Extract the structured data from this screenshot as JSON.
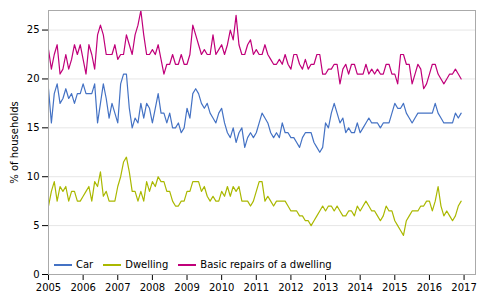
{
  "chart_data": {
    "type": "line",
    "ylabel": "% of households",
    "xlim": [
      2005.0,
      2017.33
    ],
    "xticks": [
      2005,
      2006,
      2007,
      2008,
      2009,
      2010,
      2011,
      2012,
      2013,
      2014,
      2015,
      2016,
      2017
    ],
    "ylim": [
      0,
      27
    ],
    "yticks": [
      0,
      5,
      10,
      15,
      20,
      25
    ],
    "grid": true,
    "legend": "lower left",
    "x": [
      2005,
      2005.0833333333,
      2005.1666666667,
      2005.25,
      2005.3333333333,
      2005.4166666667,
      2005.5,
      2005.5833333333,
      2005.6666666667,
      2005.75,
      2005.8333333333,
      2005.9166666667,
      2006,
      2006.0833333333,
      2006.1666666667,
      2006.25,
      2006.3333333333,
      2006.4166666667,
      2006.5,
      2006.5833333333,
      2006.6666666667,
      2006.75,
      2006.8333333333,
      2006.9166666667,
      2007,
      2007.0833333333,
      2007.1666666667,
      2007.25,
      2007.3333333333,
      2007.4166666667,
      2007.5,
      2007.5833333333,
      2007.6666666667,
      2007.75,
      2007.8333333333,
      2007.9166666667,
      2008,
      2008.0833333333,
      2008.1666666667,
      2008.25,
      2008.3333333333,
      2008.4166666667,
      2008.5,
      2008.5833333333,
      2008.6666666667,
      2008.75,
      2008.8333333333,
      2008.9166666667,
      2009,
      2009.0833333333,
      2009.1666666667,
      2009.25,
      2009.3333333333,
      2009.4166666667,
      2009.5,
      2009.5833333333,
      2009.6666666667,
      2009.75,
      2009.8333333333,
      2009.9166666667,
      2010,
      2010.0833333333,
      2010.1666666667,
      2010.25,
      2010.3333333333,
      2010.4166666667,
      2010.5,
      2010.5833333333,
      2010.6666666667,
      2010.75,
      2010.8333333333,
      2010.9166666667,
      2011,
      2011.0833333333,
      2011.1666666667,
      2011.25,
      2011.3333333333,
      2011.4166666667,
      2011.5,
      2011.5833333333,
      2011.6666666667,
      2011.75,
      2011.8333333333,
      2011.9166666667,
      2012,
      2012.0833333333,
      2012.1666666667,
      2012.25,
      2012.3333333333,
      2012.4166666667,
      2012.5,
      2012.5833333333,
      2012.6666666667,
      2012.75,
      2012.8333333333,
      2012.9166666667,
      2013,
      2013.0833333333,
      2013.1666666667,
      2013.25,
      2013.3333333333,
      2013.4166666667,
      2013.5,
      2013.5833333333,
      2013.6666666667,
      2013.75,
      2013.8333333333,
      2013.9166666667,
      2014,
      2014.0833333333,
      2014.1666666667,
      2014.25,
      2014.3333333333,
      2014.4166666667,
      2014.5,
      2014.5833333333,
      2014.6666666667,
      2014.75,
      2014.8333333333,
      2014.9166666667,
      2015,
      2015.0833333333,
      2015.1666666667,
      2015.25,
      2015.3333333333,
      2015.4166666667,
      2015.5,
      2015.5833333333,
      2015.6666666667,
      2015.75,
      2015.8333333333,
      2015.9166666667,
      2016,
      2016.0833333333,
      2016.1666666667,
      2016.25,
      2016.3333333333,
      2016.4166666667,
      2016.5,
      2016.5833333333,
      2016.6666666667,
      2016.75,
      2016.8333333333,
      2016.9166666667
    ],
    "series": [
      {
        "name": "Car",
        "color": "#4472c4",
        "values": [
          19.0,
          15.5,
          18.5,
          19.5,
          17.5,
          18.0,
          19.0,
          18.0,
          18.5,
          17.5,
          18.5,
          18.5,
          19.5,
          18.5,
          18.5,
          18.5,
          19.5,
          15.5,
          17.5,
          19.5,
          18.0,
          16.0,
          17.5,
          16.5,
          15.5,
          19.5,
          20.5,
          20.5,
          17.0,
          15.0,
          16.0,
          15.5,
          17.5,
          16.0,
          17.5,
          17.0,
          15.5,
          17.0,
          18.5,
          16.5,
          16.5,
          15.5,
          16.5,
          15.0,
          15.0,
          15.5,
          14.5,
          15.0,
          17.0,
          16.0,
          18.5,
          19.0,
          18.5,
          17.5,
          17.0,
          17.5,
          16.5,
          16.0,
          15.5,
          16.5,
          17.0,
          15.5,
          14.5,
          14.0,
          15.0,
          13.5,
          14.5,
          15.0,
          13.0,
          14.0,
          14.5,
          14.0,
          14.5,
          15.5,
          16.5,
          16.0,
          15.5,
          14.5,
          14.0,
          14.5,
          14.0,
          15.5,
          14.5,
          14.5,
          14.0,
          14.0,
          13.5,
          13.0,
          14.0,
          14.5,
          14.5,
          14.5,
          13.5,
          13.0,
          12.5,
          13.0,
          15.5,
          15.0,
          16.5,
          17.5,
          16.5,
          15.5,
          16.0,
          14.5,
          15.0,
          14.5,
          14.5,
          15.5,
          14.5,
          15.0,
          15.5,
          16.0,
          15.5,
          15.5,
          15.5,
          15.0,
          15.5,
          15.5,
          15.5,
          16.5,
          17.5,
          17.0,
          17.0,
          17.5,
          16.5,
          16.0,
          15.5,
          16.0,
          16.5,
          16.5,
          16.5,
          16.5,
          16.5,
          16.5,
          17.5,
          16.5,
          16.0,
          15.5,
          15.5,
          15.5,
          15.5,
          16.5,
          16.0,
          16.5
        ]
      },
      {
        "name": "Dwelling",
        "color": "#aab800",
        "values": [
          7.0,
          8.5,
          9.5,
          7.5,
          9.0,
          8.5,
          9.0,
          7.5,
          8.5,
          8.5,
          7.5,
          7.5,
          8.0,
          8.5,
          9.0,
          7.5,
          9.5,
          9.0,
          10.5,
          8.0,
          8.5,
          7.5,
          7.5,
          7.5,
          9.0,
          10.0,
          11.5,
          12.0,
          10.5,
          8.5,
          8.5,
          7.5,
          8.5,
          7.5,
          9.5,
          8.5,
          9.5,
          9.0,
          10.0,
          9.5,
          9.5,
          8.5,
          8.5,
          7.5,
          7.0,
          7.0,
          7.5,
          7.5,
          8.5,
          8.5,
          9.5,
          9.5,
          9.5,
          8.5,
          9.0,
          8.0,
          7.5,
          8.0,
          7.5,
          7.5,
          8.5,
          8.0,
          9.0,
          8.0,
          9.0,
          8.5,
          9.0,
          7.5,
          7.5,
          7.5,
          7.0,
          7.5,
          8.5,
          9.5,
          9.5,
          7.5,
          8.0,
          7.5,
          7.0,
          7.5,
          7.5,
          7.5,
          7.5,
          7.0,
          6.5,
          6.5,
          6.5,
          6.0,
          6.0,
          5.5,
          5.5,
          5.0,
          5.5,
          6.0,
          6.5,
          7.0,
          6.5,
          7.0,
          7.0,
          6.5,
          7.0,
          6.5,
          6.0,
          6.0,
          6.5,
          6.5,
          6.0,
          7.0,
          6.5,
          7.0,
          7.5,
          7.0,
          6.5,
          6.5,
          6.0,
          5.5,
          6.0,
          7.0,
          6.5,
          6.5,
          5.5,
          5.0,
          4.5,
          4.0,
          5.5,
          6.0,
          6.5,
          6.5,
          6.5,
          7.0,
          7.0,
          7.5,
          7.5,
          6.5,
          7.5,
          9.0,
          7.0,
          6.0,
          6.5,
          6.0,
          5.5,
          6.0,
          7.0,
          7.5
        ]
      },
      {
        "name": "Basic repairs of a dwelling",
        "color": "#c0007a",
        "values": [
          23.0,
          21.0,
          22.5,
          23.5,
          20.5,
          21.0,
          22.5,
          21.0,
          22.0,
          23.5,
          22.5,
          23.5,
          22.0,
          20.5,
          23.5,
          22.5,
          21.0,
          24.5,
          25.5,
          24.5,
          22.5,
          22.5,
          22.5,
          23.5,
          22.0,
          22.5,
          22.5,
          24.5,
          23.5,
          22.5,
          24.5,
          25.5,
          27.0,
          24.5,
          22.5,
          22.5,
          23.0,
          22.5,
          23.5,
          22.0,
          20.5,
          21.5,
          21.5,
          22.5,
          21.5,
          21.5,
          22.5,
          21.5,
          21.5,
          22.5,
          25.5,
          24.5,
          23.5,
          22.5,
          23.0,
          22.5,
          22.5,
          24.5,
          22.5,
          23.0,
          23.5,
          22.5,
          23.5,
          25.0,
          24.0,
          26.5,
          23.5,
          22.5,
          22.5,
          23.5,
          24.0,
          22.5,
          23.0,
          22.5,
          22.5,
          23.5,
          22.5,
          22.0,
          21.5,
          21.5,
          22.0,
          21.5,
          22.5,
          21.5,
          21.0,
          22.5,
          22.5,
          21.5,
          21.0,
          22.0,
          21.0,
          21.5,
          21.5,
          22.5,
          22.5,
          20.5,
          20.5,
          21.0,
          21.0,
          21.5,
          21.5,
          19.5,
          21.0,
          21.5,
          20.5,
          21.5,
          21.5,
          20.5,
          20.5,
          20.5,
          21.5,
          20.5,
          21.0,
          20.5,
          21.0,
          20.5,
          20.5,
          21.5,
          21.5,
          20.5,
          20.5,
          19.5,
          22.5,
          22.5,
          21.5,
          21.5,
          19.5,
          20.5,
          21.5,
          21.0,
          19.0,
          19.5,
          20.5,
          21.5,
          21.5,
          20.5,
          20.0,
          19.5,
          20.0,
          20.5,
          20.5,
          21.0,
          20.5,
          20.0
        ]
      }
    ]
  }
}
